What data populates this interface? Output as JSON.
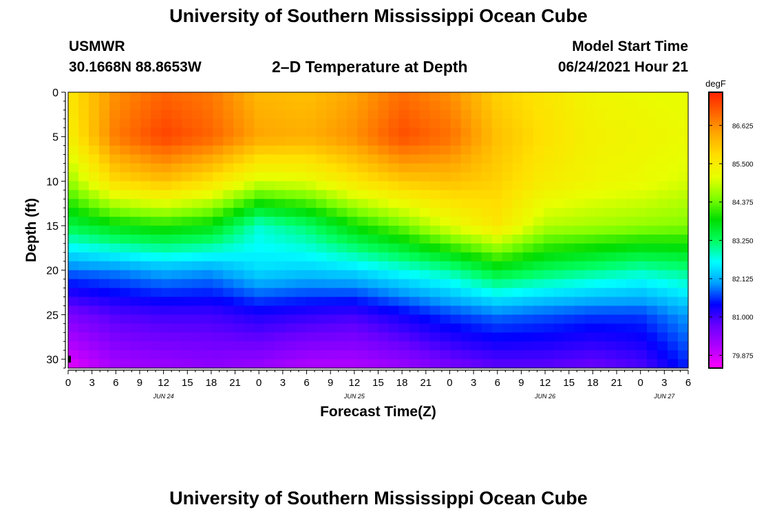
{
  "page": {
    "title": "University of Southern Mississippi Ocean Cube",
    "footer_title": "University of Southern Mississippi Ocean Cube",
    "station": "USMWR",
    "coords": "30.1668N  88.8653W",
    "subtitle": "2–D Temperature at Depth",
    "model_label": "Model Start Time",
    "model_time": "06/24/2021 Hour 21"
  },
  "chart_data": {
    "type": "heatmap",
    "title": "2–D Temperature at Depth",
    "xlabel": "Forecast Time(Z)",
    "ylabel": "Depth (ft)",
    "x_ticks": [
      "0",
      "3",
      "6",
      "9",
      "12",
      "15",
      "18",
      "21",
      "0",
      "3",
      "6",
      "9",
      "12",
      "15",
      "18",
      "21",
      "0",
      "3",
      "6",
      "9",
      "12",
      "15",
      "18",
      "21",
      "0",
      "3",
      "6"
    ],
    "x_range_hours": [
      0,
      78
    ],
    "date_labels": [
      {
        "label": "JUN 24",
        "hour": 12
      },
      {
        "label": "JUN 25",
        "hour": 36
      },
      {
        "label": "JUN 26",
        "hour": 60
      },
      {
        "label": "JUN 27",
        "hour": 75
      }
    ],
    "y_ticks": [
      0,
      5,
      10,
      15,
      20,
      25,
      30
    ],
    "y_range": [
      0,
      31
    ],
    "y_inverted": true,
    "colorbar": {
      "unit": "degF",
      "labels": [
        "86.625",
        "85.500",
        "84.375",
        "83.250",
        "82.125",
        "81.000",
        "79.875"
      ],
      "range": [
        79.5,
        87.6
      ],
      "colors": [
        "#ff00ff",
        "#b000ff",
        "#6a00ff",
        "#0000ff",
        "#00a0ff",
        "#00ffff",
        "#00ff60",
        "#00dd00",
        "#80ff00",
        "#e8ff00",
        "#ffe000",
        "#ffaa00",
        "#ff6600",
        "#ff2000"
      ]
    },
    "hours": [
      0,
      6,
      12,
      18,
      24,
      30,
      36,
      42,
      48,
      54,
      60,
      66,
      72,
      78
    ],
    "depths": [
      0,
      5,
      10,
      15,
      20,
      25,
      31
    ],
    "temps_degF": [
      [
        85.6,
        86.6,
        87.0,
        86.8,
        86.2,
        86.1,
        86.4,
        86.9,
        86.6,
        85.9,
        85.6,
        85.3,
        85.2,
        85.1
      ],
      [
        85.4,
        86.8,
        87.3,
        87.0,
        86.4,
        86.3,
        86.6,
        87.2,
        86.9,
        86.1,
        85.7,
        85.4,
        85.3,
        85.2
      ],
      [
        84.6,
        85.8,
        86.1,
        85.7,
        85.0,
        85.1,
        85.6,
        86.0,
        86.1,
        85.9,
        85.5,
        85.3,
        85.2,
        85.0
      ],
      [
        83.4,
        83.8,
        84.0,
        83.8,
        82.8,
        83.2,
        83.9,
        84.4,
        85.1,
        85.6,
        84.8,
        84.7,
        84.6,
        84.5
      ],
      [
        81.8,
        81.9,
        82.1,
        82.0,
        82.4,
        82.3,
        82.4,
        82.7,
        83.0,
        83.6,
        83.3,
        83.1,
        82.9,
        83.1
      ],
      [
        80.6,
        80.9,
        81.0,
        81.0,
        81.2,
        81.1,
        81.0,
        81.3,
        81.6,
        81.8,
        81.7,
        81.6,
        81.6,
        82.0
      ],
      [
        79.7,
        80.2,
        80.3,
        80.4,
        80.3,
        80.1,
        80.1,
        80.3,
        80.6,
        80.8,
        80.8,
        80.7,
        80.9,
        81.5
      ]
    ]
  }
}
